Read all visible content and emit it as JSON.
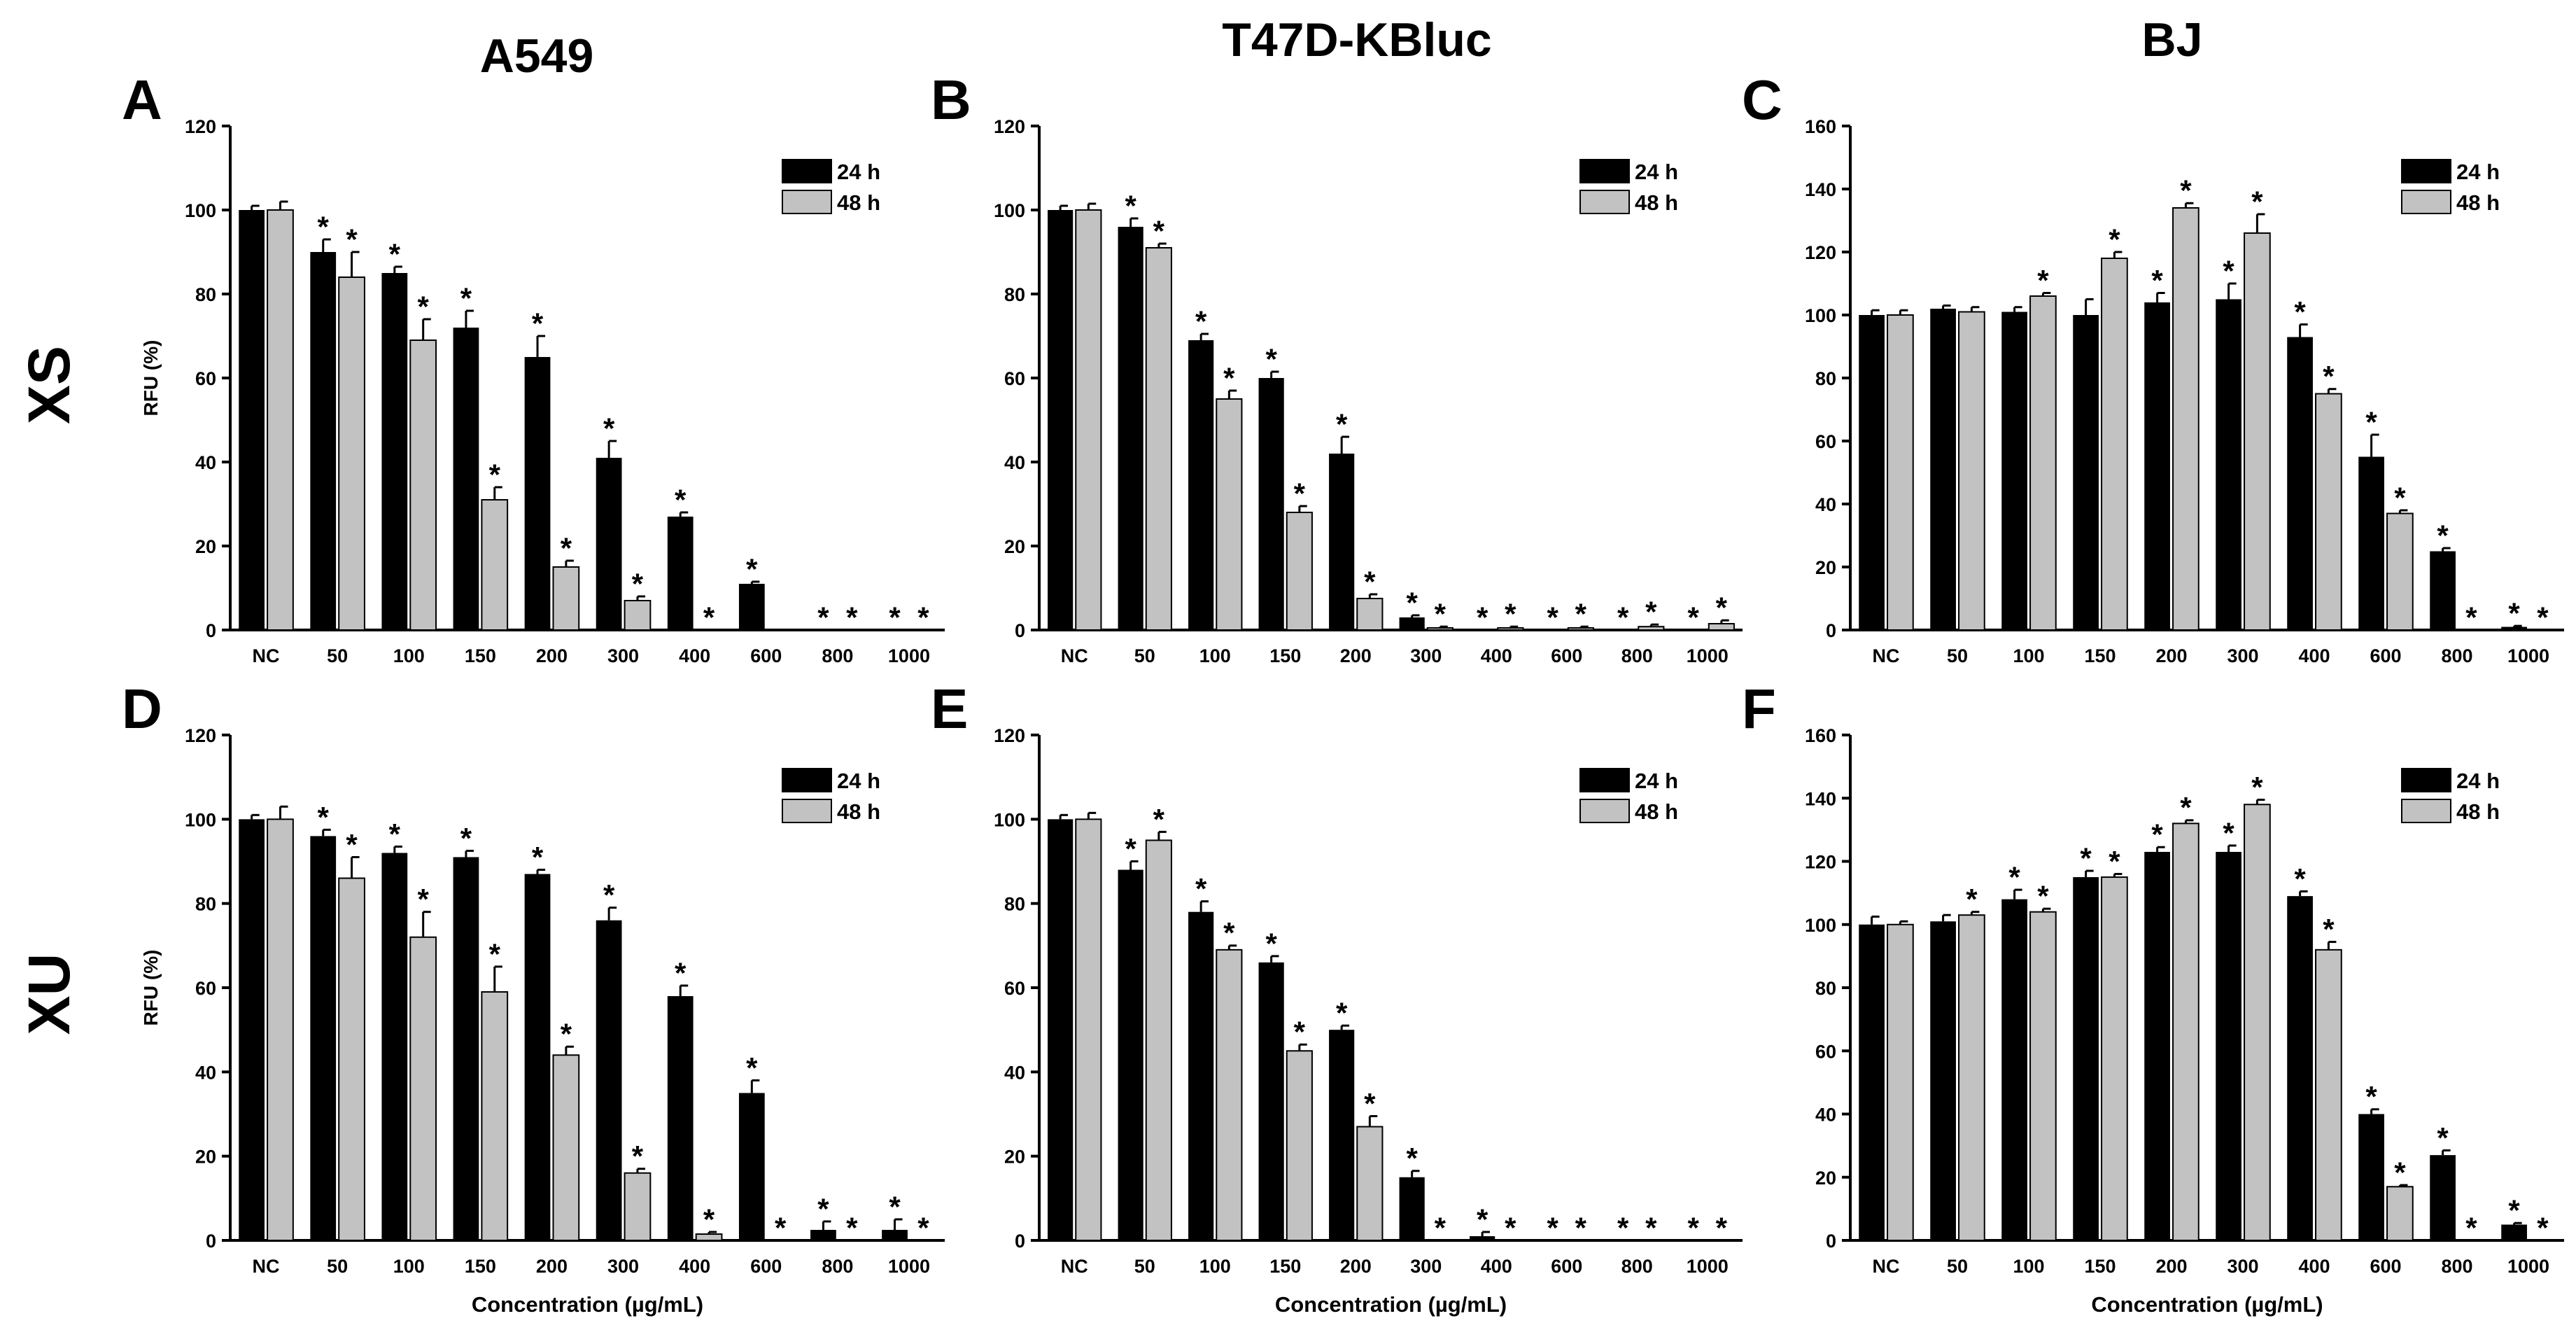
{
  "figure": {
    "columns": [
      "A549",
      "T47D-KBluc",
      "BJ"
    ],
    "rows": [
      "XS",
      "XU"
    ]
  },
  "colors": {
    "series_24h": "#000000",
    "series_48h": "#c2c2c2",
    "axis": "#000000"
  },
  "chart_data": [
    {
      "panel": "A",
      "type": "bar",
      "row": "XS",
      "column": "A549",
      "categories": [
        "NC",
        "50",
        "100",
        "150",
        "200",
        "300",
        "400",
        "600",
        "800",
        "1000"
      ],
      "ylabel": "RFU (%)",
      "xlabel": "",
      "ylim": [
        0,
        120
      ],
      "yticks": [
        0,
        20,
        40,
        60,
        80,
        100,
        120
      ],
      "series": [
        {
          "name": "24 h",
          "values": [
            100,
            90,
            85,
            72,
            65,
            41,
            27,
            11,
            0,
            0
          ],
          "errors": [
            1,
            3,
            1.5,
            4,
            5,
            4,
            1,
            0.5,
            0,
            0
          ],
          "significant": [
            false,
            true,
            true,
            true,
            true,
            true,
            true,
            true,
            true,
            true
          ]
        },
        {
          "name": "48 h",
          "values": [
            100,
            84,
            69,
            31,
            15,
            7,
            0,
            0,
            0,
            0
          ],
          "errors": [
            2,
            6,
            5,
            3,
            1.5,
            1,
            0,
            0,
            0,
            0
          ],
          "significant": [
            false,
            true,
            true,
            true,
            true,
            true,
            true,
            false,
            true,
            true
          ]
        }
      ]
    },
    {
      "panel": "B",
      "type": "bar",
      "row": "XS",
      "column": "T47D-KBluc",
      "categories": [
        "NC",
        "50",
        "100",
        "150",
        "200",
        "300",
        "400",
        "600",
        "800",
        "1000"
      ],
      "ylabel": "",
      "xlabel": "",
      "ylim": [
        0,
        120
      ],
      "yticks": [
        0,
        20,
        40,
        60,
        80,
        100,
        120
      ],
      "series": [
        {
          "name": "24 h",
          "values": [
            100,
            96,
            69,
            60,
            42,
            3,
            0,
            0,
            0,
            0
          ],
          "errors": [
            1,
            2,
            1.5,
            1.5,
            4,
            0.5,
            0,
            0,
            0,
            0
          ],
          "significant": [
            false,
            true,
            true,
            true,
            true,
            true,
            true,
            true,
            true,
            true
          ]
        },
        {
          "name": "48 h",
          "values": [
            100,
            91,
            55,
            28,
            7.5,
            0.5,
            0.5,
            0.5,
            0.8,
            1.5
          ],
          "errors": [
            1.5,
            1,
            2,
            1.5,
            1,
            0.3,
            0.3,
            0.3,
            0.5,
            0.8
          ],
          "significant": [
            false,
            true,
            true,
            true,
            true,
            true,
            true,
            true,
            true,
            true
          ]
        }
      ]
    },
    {
      "panel": "C",
      "type": "bar",
      "row": "XS",
      "column": "BJ",
      "categories": [
        "NC",
        "50",
        "100",
        "150",
        "200",
        "300",
        "400",
        "600",
        "800",
        "1000"
      ],
      "ylabel": "",
      "xlabel": "",
      "ylim": [
        0,
        160
      ],
      "yticks": [
        0,
        20,
        40,
        60,
        80,
        100,
        120,
        140,
        160
      ],
      "series": [
        {
          "name": "24 h",
          "values": [
            100,
            102,
            101,
            100,
            104,
            105,
            93,
            55,
            25,
            1
          ],
          "errors": [
            1.5,
            1,
            1.5,
            5,
            3,
            5,
            4,
            7,
            1,
            0.3
          ],
          "significant": [
            false,
            false,
            false,
            false,
            true,
            true,
            true,
            true,
            true,
            true
          ]
        },
        {
          "name": "48 h",
          "values": [
            100,
            101,
            106,
            118,
            134,
            126,
            75,
            37,
            0,
            0
          ],
          "errors": [
            1.5,
            1.5,
            1,
            2,
            1.5,
            6,
            1.5,
            1,
            0,
            0
          ],
          "significant": [
            false,
            false,
            true,
            true,
            true,
            true,
            true,
            true,
            true,
            true
          ]
        }
      ]
    },
    {
      "panel": "D",
      "type": "bar",
      "row": "XU",
      "column": "A549",
      "categories": [
        "NC",
        "50",
        "100",
        "150",
        "200",
        "300",
        "400",
        "600",
        "800",
        "1000"
      ],
      "ylabel": "RFU (%)",
      "xlabel": "Concentration (µg/mL)",
      "ylim": [
        0,
        120
      ],
      "yticks": [
        0,
        20,
        40,
        60,
        80,
        100,
        120
      ],
      "series": [
        {
          "name": "24 h",
          "values": [
            100,
            96,
            92,
            91,
            87,
            76,
            58,
            35,
            2.5,
            2.5
          ],
          "errors": [
            1,
            1.5,
            1.5,
            1.5,
            1,
            3,
            2.5,
            3,
            2,
            2.5
          ],
          "significant": [
            false,
            true,
            true,
            true,
            true,
            true,
            true,
            true,
            true,
            true
          ]
        },
        {
          "name": "48 h",
          "values": [
            100,
            86,
            72,
            59,
            44,
            16,
            1.5,
            0,
            0,
            0
          ],
          "errors": [
            3,
            5,
            6,
            6,
            2,
            1,
            0.5,
            0,
            0,
            0
          ],
          "significant": [
            false,
            true,
            true,
            true,
            true,
            true,
            true,
            true,
            true,
            true
          ]
        }
      ]
    },
    {
      "panel": "E",
      "type": "bar",
      "row": "XU",
      "column": "T47D-KBluc",
      "categories": [
        "NC",
        "50",
        "100",
        "150",
        "200",
        "300",
        "400",
        "600",
        "800",
        "1000"
      ],
      "ylabel": "",
      "xlabel": "Concentration (µg/mL)",
      "ylim": [
        0,
        120
      ],
      "yticks": [
        0,
        20,
        40,
        60,
        80,
        100,
        120
      ],
      "series": [
        {
          "name": "24 h",
          "values": [
            100,
            88,
            78,
            66,
            50,
            15,
            1,
            0,
            0,
            0
          ],
          "errors": [
            1,
            2,
            2.5,
            1.5,
            1,
            1.5,
            1,
            0,
            0,
            0
          ],
          "significant": [
            false,
            true,
            true,
            true,
            true,
            true,
            true,
            true,
            true,
            true
          ]
        },
        {
          "name": "48 h",
          "values": [
            100,
            95,
            69,
            45,
            27,
            0,
            0,
            0,
            0,
            0
          ],
          "errors": [
            1.5,
            2,
            1,
            1.5,
            2.5,
            0,
            0,
            0,
            0,
            0
          ],
          "significant": [
            false,
            true,
            true,
            true,
            true,
            true,
            true,
            true,
            true,
            true
          ]
        }
      ]
    },
    {
      "panel": "F",
      "type": "bar",
      "row": "XU",
      "column": "BJ",
      "categories": [
        "NC",
        "50",
        "100",
        "150",
        "200",
        "300",
        "400",
        "600",
        "800",
        "1000"
      ],
      "ylabel": "",
      "xlabel": "Concentration (µg/mL)",
      "ylim": [
        0,
        160
      ],
      "yticks": [
        0,
        20,
        40,
        60,
        80,
        100,
        120,
        140,
        160
      ],
      "series": [
        {
          "name": "24 h",
          "values": [
            100,
            101,
            108,
            115,
            123,
            123,
            109,
            40,
            27,
            5
          ],
          "errors": [
            2.5,
            2,
            3,
            2,
            1.5,
            2,
            1.5,
            1.5,
            1.5,
            0.5
          ],
          "significant": [
            false,
            false,
            true,
            true,
            true,
            true,
            true,
            true,
            true,
            true
          ]
        },
        {
          "name": "48 h",
          "values": [
            100,
            103,
            104,
            115,
            132,
            138,
            92,
            17,
            0,
            0
          ],
          "errors": [
            1,
            1,
            1,
            1,
            1,
            1.5,
            2.5,
            0.5,
            0,
            0
          ],
          "significant": [
            false,
            true,
            true,
            true,
            true,
            true,
            true,
            true,
            true,
            true
          ]
        }
      ]
    }
  ]
}
